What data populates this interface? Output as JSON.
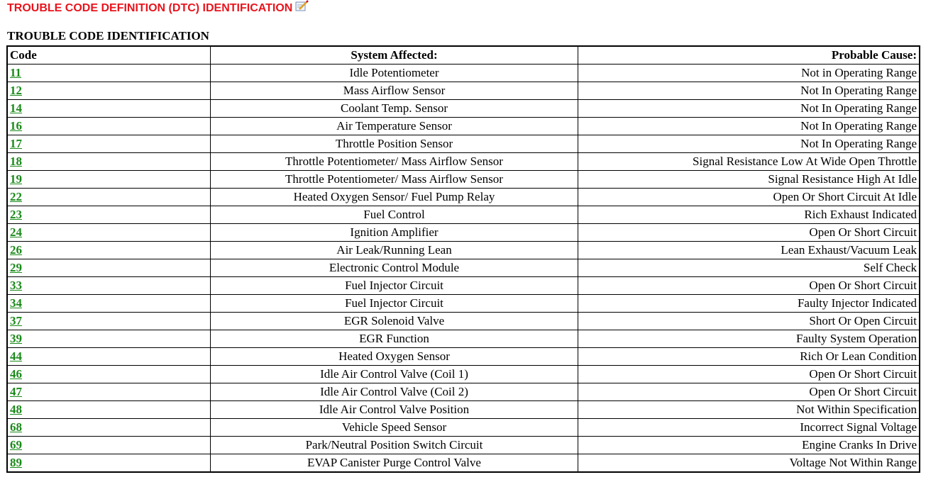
{
  "page_title": "TROUBLE CODE DEFINITION (DTC) IDENTIFICATION",
  "section_title": "TROUBLE CODE IDENTIFICATION",
  "colors": {
    "title": "#e8141c",
    "link": "#1a8a1a"
  },
  "icons": {
    "title_icon": "edit-note-icon"
  },
  "table": {
    "headers": [
      "Code",
      "System Affected:",
      "Probable Cause:"
    ],
    "rows": [
      [
        "11",
        "Idle Potentiometer",
        "Not in Operating Range"
      ],
      [
        "12",
        "Mass Airflow Sensor",
        "Not In Operating Range"
      ],
      [
        "14",
        "Coolant Temp. Sensor",
        "Not In Operating Range"
      ],
      [
        "16",
        "Air Temperature Sensor",
        "Not In Operating Range"
      ],
      [
        "17",
        "Throttle Position Sensor",
        "Not In Operating Range"
      ],
      [
        "18",
        "Throttle Potentiometer/ Mass Airflow Sensor",
        "Signal Resistance Low At Wide Open Throttle"
      ],
      [
        "19",
        "Throttle Potentiometer/ Mass Airflow Sensor",
        "Signal Resistance High At Idle"
      ],
      [
        "22",
        "Heated Oxygen Sensor/ Fuel Pump Relay",
        "Open Or Short Circuit At Idle"
      ],
      [
        "23",
        "Fuel Control",
        "Rich Exhaust Indicated"
      ],
      [
        "24",
        "Ignition Amplifier",
        "Open Or Short Circuit"
      ],
      [
        "26",
        "Air Leak/Running Lean",
        "Lean Exhaust/Vacuum Leak"
      ],
      [
        "29",
        "Electronic Control Module",
        "Self Check"
      ],
      [
        "33",
        "Fuel Injector Circuit",
        "Open Or Short Circuit"
      ],
      [
        "34",
        "Fuel Injector Circuit",
        "Faulty Injector Indicated"
      ],
      [
        "37",
        "EGR Solenoid Valve",
        "Short Or Open Circuit"
      ],
      [
        "39",
        "EGR Function",
        "Faulty System Operation"
      ],
      [
        "44",
        "Heated Oxygen Sensor",
        "Rich Or Lean Condition"
      ],
      [
        "46",
        "Idle Air Control Valve (Coil 1)",
        "Open Or Short Circuit"
      ],
      [
        "47",
        "Idle Air Control Valve (Coil 2)",
        "Open Or Short Circuit"
      ],
      [
        "48",
        "Idle Air Control Valve Position",
        "Not Within Specification"
      ],
      [
        "68",
        "Vehicle Speed Sensor",
        "Incorrect Signal Voltage"
      ],
      [
        "69",
        "Park/Neutral Position Switch Circuit",
        "Engine Cranks In Drive"
      ],
      [
        "89",
        "EVAP Canister Purge Control Valve",
        "Voltage Not Within Range"
      ]
    ]
  }
}
